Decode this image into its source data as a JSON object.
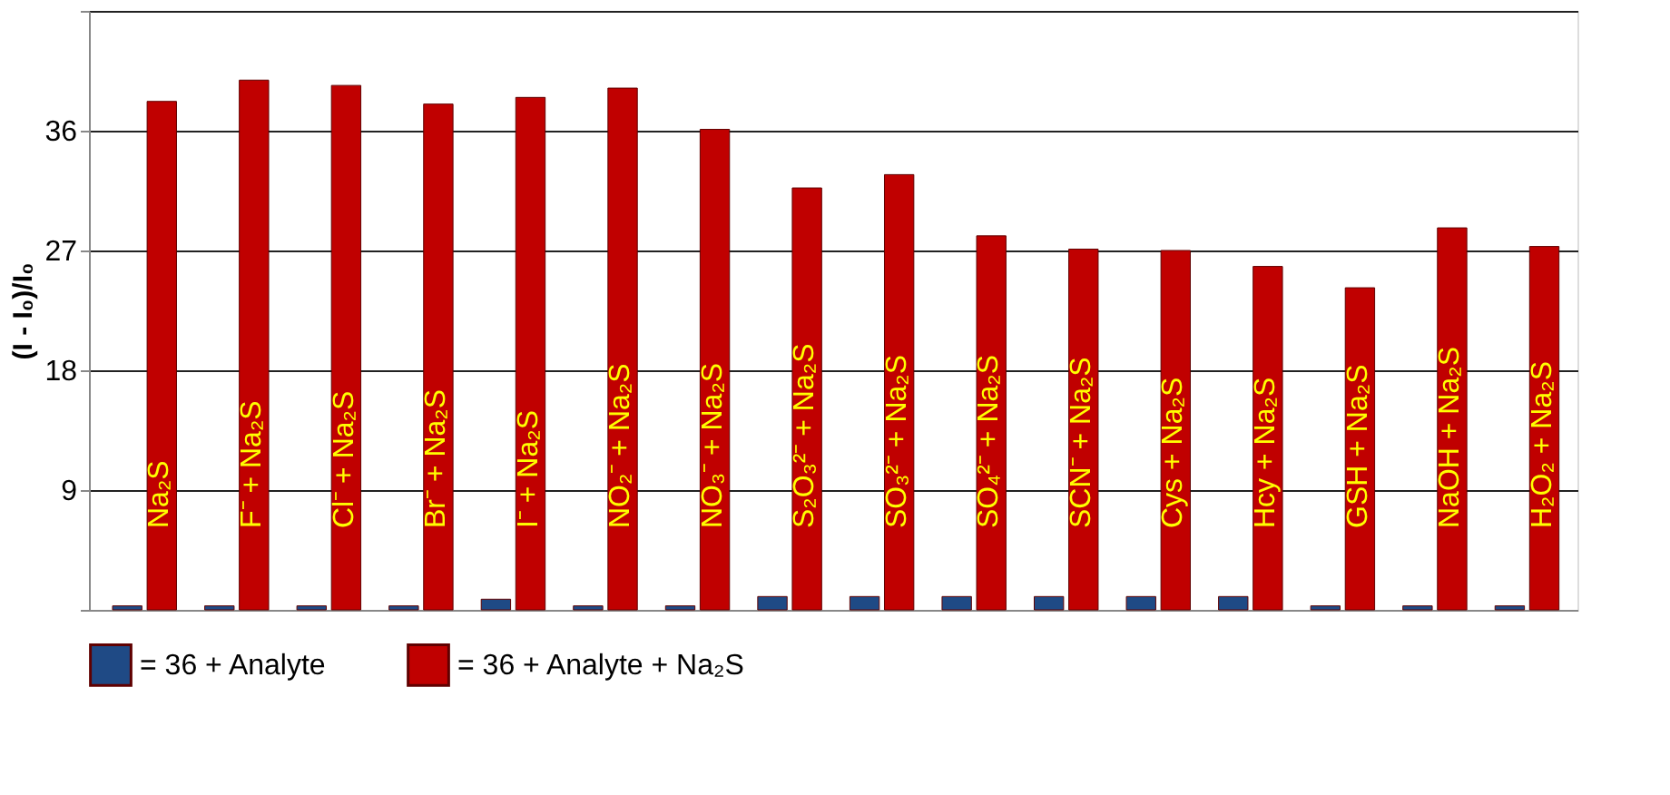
{
  "chart_data": {
    "type": "bar",
    "ylabel": "(I - I₀)/I₀",
    "categories": [
      "Na₂S",
      "F⁻ + Na₂S",
      "Cl⁻ + Na₂S",
      "Br⁻ + Na₂S",
      "I⁻ + Na₂S",
      "NO₂⁻ + Na₂S",
      "NO₃⁻ + Na₂S",
      "S₂O₃²⁻ + Na₂S",
      "SO₃²⁻ + Na₂S",
      "SO₄²⁻ + Na₂S",
      "SCN⁻ + Na₂S",
      "Cys + Na₂S",
      "Hcy + Na₂S",
      "GSH + Na₂S",
      "NaOH + Na₂S",
      "H₂O₂ + Na₂S"
    ],
    "series": [
      {
        "name": "= 36 + Analyte",
        "color": "#1f4a85",
        "values": [
          0.3,
          0.3,
          0.3,
          0.3,
          0.8,
          0.3,
          0.3,
          1,
          1,
          1,
          1,
          1,
          1,
          0.3,
          0.3,
          0.3
        ]
      },
      {
        "name": "= 36 + Analyte + Na₂S",
        "color": "#c00000",
        "values": [
          38.2,
          39.8,
          39.4,
          38.0,
          38.5,
          39.2,
          36.1,
          31.7,
          32.7,
          28.1,
          27.1,
          27.0,
          25.8,
          24.2,
          28.7,
          27.3
        ]
      }
    ],
    "ylim": [
      0,
      45
    ],
    "yticks": [
      {
        "value": 0,
        "label": null
      },
      9,
      18,
      27,
      36,
      {
        "value": 45,
        "label": null
      }
    ],
    "tick_labels": "y",
    "grid": "y",
    "legend": "bottom"
  }
}
